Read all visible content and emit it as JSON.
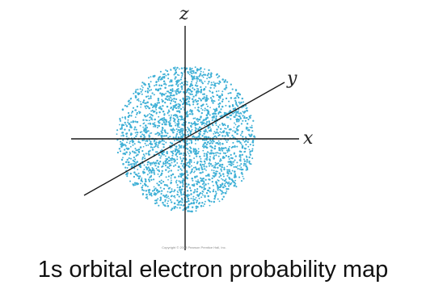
{
  "diagram": {
    "axes": {
      "x_label": "x",
      "y_label": "y",
      "z_label": "z"
    },
    "dot_color": "#3fb0d6",
    "copyright_text": "Copyright © 2008 Pearson Prentice Hall, Inc."
  },
  "caption": "1s orbital electron probability map"
}
